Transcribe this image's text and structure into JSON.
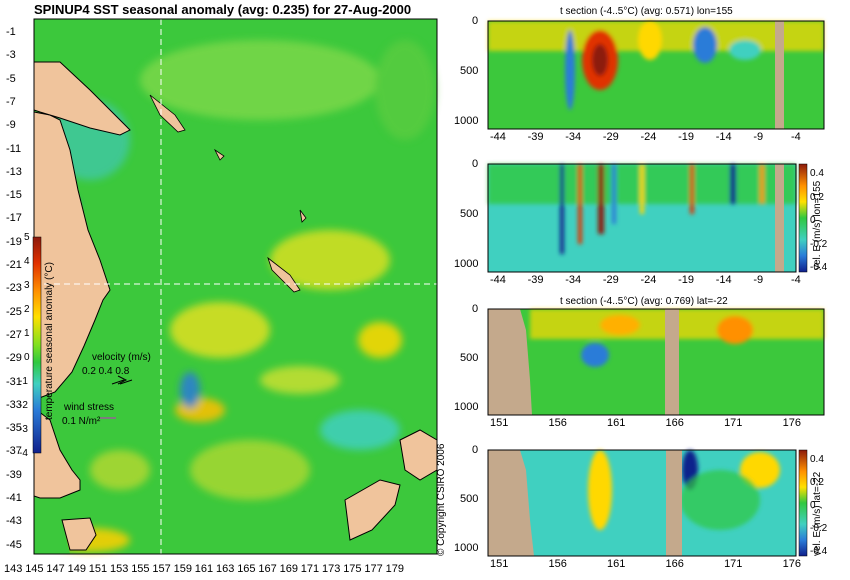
{
  "map": {
    "title": "SPINUP4 SST seasonal anomaly (avg: 0.235) for 27-Aug-2000",
    "lat_labels": [
      "-1",
      "-3",
      "-5",
      "-7",
      "-9",
      "-11",
      "-13",
      "-15",
      "-17",
      "-19",
      "-21",
      "-23",
      "-25",
      "-27",
      "-29",
      "-31",
      "-33",
      "-35",
      "-37",
      "-39",
      "-41",
      "-43",
      "-45"
    ],
    "lon_labels": [
      "143",
      "145",
      "147",
      "149",
      "151",
      "153",
      "155",
      "157",
      "159",
      "161",
      "163",
      "165",
      "167",
      "169",
      "171",
      "173",
      "175",
      "177",
      "179"
    ],
    "colorbar": {
      "label": "temperature seasonal anomaly (°C)",
      "ticks": [
        "5",
        "4",
        "3",
        "2",
        "1",
        "0",
        "-1",
        "-2",
        "-3",
        "-4"
      ]
    },
    "velocity_legend": {
      "label": "velocity (m/s)",
      "values": "0.2 0.4 0.8"
    },
    "wind_legend": {
      "label": "wind stress",
      "value": "0.1 N/m²"
    },
    "copyright": "© Copyright CSIRO 2006",
    "crosshair": {
      "lon": 155,
      "lat": -22
    }
  },
  "panels": [
    {
      "title": "t section (-4..5°C) (avg: 0.571) lon=155",
      "yticks": [
        "0",
        "500",
        "1000"
      ],
      "xticks": [
        "-44",
        "-39",
        "-34",
        "-29",
        "-24",
        "-19",
        "-14",
        "-9",
        "-4"
      ],
      "side_label": "",
      "colorbar_ticks": []
    },
    {
      "title": "",
      "yticks": [
        "0",
        "500",
        "1000"
      ],
      "xticks": [
        "-44",
        "-39",
        "-34",
        "-29",
        "-24",
        "-19",
        "-14",
        "-9",
        "-4"
      ],
      "side_label": "vel. E (m/s) lon=155",
      "colorbar_ticks": [
        "0.4",
        "0.2",
        "0",
        "-0.2",
        "-0.4"
      ]
    },
    {
      "title": "t section (-4..5°C) (avg: 0.769) lat=-22",
      "yticks": [
        "0",
        "500",
        "1000"
      ],
      "xticks": [
        "151",
        "156",
        "161",
        "166",
        "171",
        "176"
      ],
      "side_label": "",
      "colorbar_ticks": []
    },
    {
      "title": "",
      "yticks": [
        "0",
        "500",
        "1000"
      ],
      "xticks": [
        "151",
        "156",
        "161",
        "166",
        "171",
        "176"
      ],
      "side_label": "vel. E (m/s) lat=-22",
      "colorbar_ticks": [
        "0.4",
        "0.2",
        "0",
        "-0.2",
        "-0.4"
      ]
    }
  ],
  "colors": {
    "land": "#f0c49c",
    "section_land": "#c4a98c",
    "ocean_base": "#3cc83c",
    "warm": "#ffd800",
    "hot": "#e03000",
    "cool": "#2a7cd8",
    "cold": "#10208c",
    "cyan": "#40d0c0"
  }
}
